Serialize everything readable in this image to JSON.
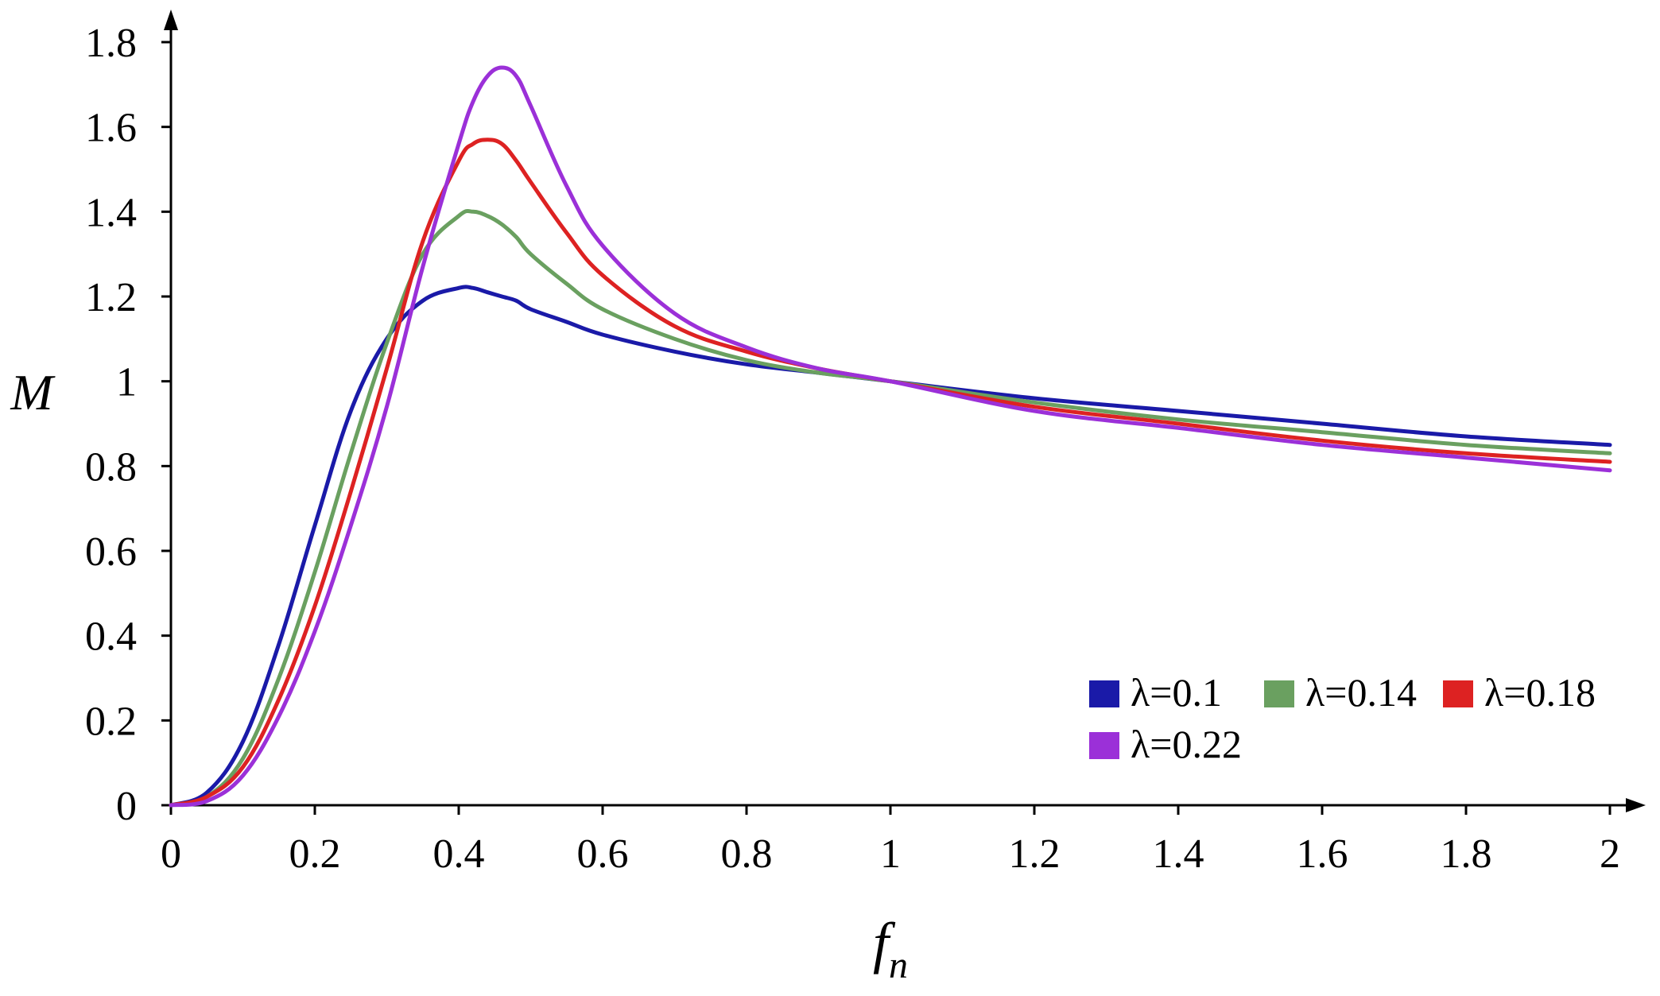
{
  "chart_data": {
    "type": "line",
    "title": "",
    "xlabel": "f",
    "xlabel_sub": "n",
    "ylabel": "M",
    "xlim": [
      0,
      2
    ],
    "ylim": [
      0,
      1.8
    ],
    "x_ticks": [
      "0",
      "0.2",
      "0.4",
      "0.6",
      "0.8",
      "1",
      "1.2",
      "1.4",
      "1.6",
      "1.8",
      "2"
    ],
    "y_ticks": [
      "0",
      "0.2",
      "0.4",
      "0.6",
      "0.8",
      "1",
      "1.2",
      "1.4",
      "1.6",
      "1.8"
    ],
    "grid": false,
    "legend_position": "bottom-right",
    "x": [
      0,
      0.05,
      0.1,
      0.15,
      0.2,
      0.25,
      0.3,
      0.35,
      0.4,
      0.42,
      0.44,
      0.46,
      0.48,
      0.5,
      0.55,
      0.6,
      0.7,
      0.8,
      0.9,
      1.0,
      1.2,
      1.4,
      1.6,
      1.8,
      2.0
    ],
    "series": [
      {
        "name": "λ=0.1",
        "color": "#1a1aa8",
        "values": [
          0,
          0.03,
          0.15,
          0.38,
          0.66,
          0.93,
          1.1,
          1.19,
          1.22,
          1.22,
          1.21,
          1.2,
          1.19,
          1.17,
          1.14,
          1.11,
          1.07,
          1.04,
          1.02,
          1.0,
          0.96,
          0.93,
          0.9,
          0.87,
          0.85
        ]
      },
      {
        "name": "λ=0.14",
        "color": "#6aa060",
        "values": [
          0,
          0.02,
          0.11,
          0.3,
          0.55,
          0.83,
          1.09,
          1.3,
          1.39,
          1.4,
          1.39,
          1.37,
          1.34,
          1.3,
          1.23,
          1.17,
          1.1,
          1.05,
          1.02,
          1.0,
          0.95,
          0.91,
          0.88,
          0.85,
          0.83
        ]
      },
      {
        "name": "λ=0.18",
        "color": "#dd2222",
        "values": [
          0,
          0.02,
          0.09,
          0.25,
          0.47,
          0.74,
          1.03,
          1.33,
          1.52,
          1.56,
          1.57,
          1.56,
          1.52,
          1.47,
          1.35,
          1.25,
          1.13,
          1.07,
          1.03,
          1.0,
          0.94,
          0.9,
          0.86,
          0.83,
          0.81
        ]
      },
      {
        "name": "λ=0.22",
        "color": "#9b30d8",
        "values": [
          0,
          0.01,
          0.07,
          0.21,
          0.41,
          0.66,
          0.94,
          1.27,
          1.56,
          1.66,
          1.72,
          1.74,
          1.72,
          1.65,
          1.46,
          1.32,
          1.16,
          1.08,
          1.03,
          1.0,
          0.93,
          0.89,
          0.85,
          0.82,
          0.79
        ]
      }
    ]
  }
}
